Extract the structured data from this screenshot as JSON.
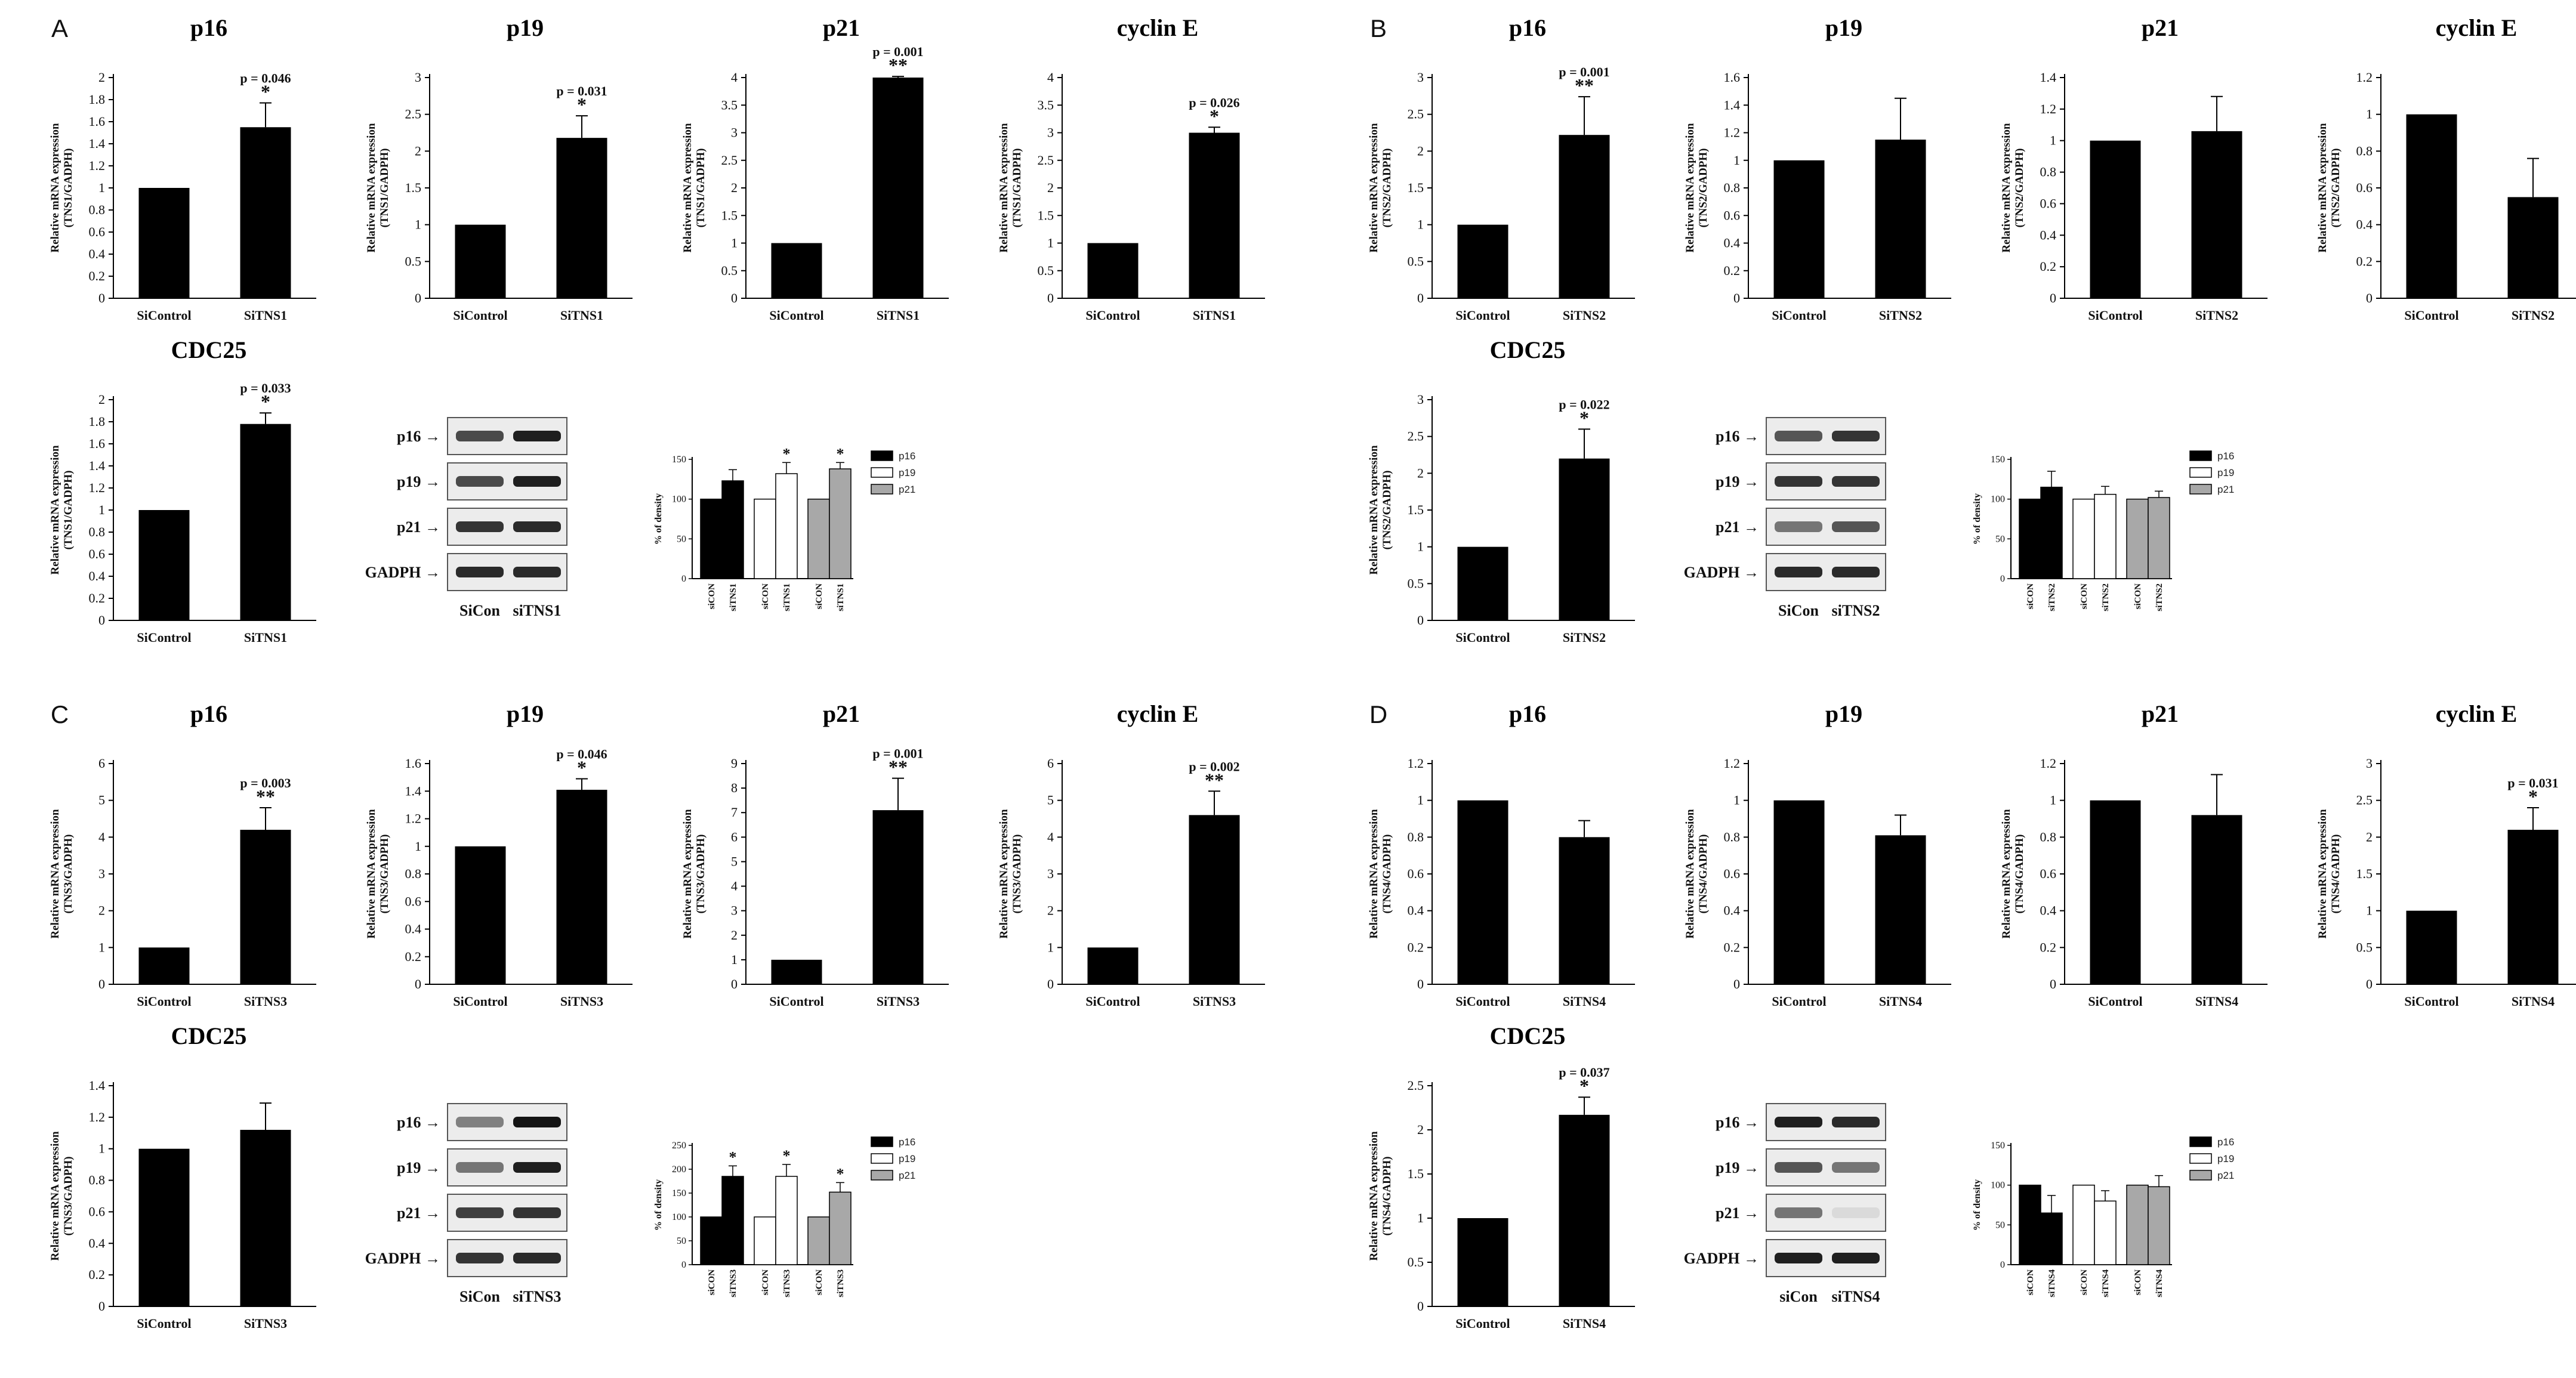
{
  "panels": [
    {
      "letter": "A",
      "row1": [
        {
          "title": "p16",
          "ylabel": [
            "Relative mRNA expression",
            "(TNS1/GADPH)"
          ],
          "ymax": 2,
          "ystep": 0.2,
          "categories": [
            "SiControl",
            "SiTNS1"
          ],
          "values": [
            1.0,
            1.55
          ],
          "errors": [
            0,
            0.22
          ],
          "pvalue": "p = 0.046",
          "sig": "*"
        },
        {
          "title": "p19",
          "ylabel": [
            "Relative mRNA expression",
            "(TNS1/GADPH)"
          ],
          "ymax": 3,
          "ystep": 0.5,
          "categories": [
            "SiControl",
            "SiTNS1"
          ],
          "values": [
            1.0,
            2.18
          ],
          "errors": [
            0,
            0.3
          ],
          "pvalue": "p = 0.031",
          "sig": "*"
        },
        {
          "title": "p21",
          "ylabel": [
            "Relative mRNA expression",
            "(TNS1/GADPH)"
          ],
          "ymax": 4,
          "ystep": 0.5,
          "categories": [
            "SiControl",
            "SiTNS1"
          ],
          "values": [
            1.0,
            4.0
          ],
          "errors": [
            0,
            0.02
          ],
          "pvalue": "p = 0.001",
          "sig": "**"
        },
        {
          "title": "cyclin E",
          "ylabel": [
            "Relative mRNA expression",
            "(TNS1/GADPH)"
          ],
          "ymax": 4,
          "ystep": 0.5,
          "categories": [
            "SiControl",
            "SiTNS1"
          ],
          "values": [
            1.0,
            3.0
          ],
          "errors": [
            0,
            0.1
          ],
          "pvalue": "p = 0.026",
          "sig": "*"
        }
      ],
      "cdc25": {
        "title": "CDC25",
        "ylabel": [
          "Relative mRNA expression",
          "(TNS1/GADPH)"
        ],
        "ymax": 2,
        "ystep": 0.2,
        "categories": [
          "SiControl",
          "SiTNS1"
        ],
        "values": [
          1.0,
          1.78
        ],
        "errors": [
          0,
          0.1
        ],
        "pvalue": "p = 0.033",
        "sig": "*"
      },
      "blot": {
        "rows": [
          "p16 →",
          "p19 →",
          "p21 →",
          "GADPH →"
        ],
        "lanes": [
          "SiCon",
          "siTNS1"
        ],
        "intensity": [
          [
            0.75,
            0.95
          ],
          [
            0.75,
            0.95
          ],
          [
            0.85,
            0.9
          ],
          [
            0.9,
            0.9
          ]
        ]
      },
      "density": {
        "ylabel": "% of density",
        "ymax": 150,
        "ystep": 50,
        "categories": [
          "siCON",
          "siTNS1",
          "siCON",
          "siTNS1",
          "siCON",
          "siTNS1"
        ],
        "values": [
          100,
          123,
          100,
          132,
          100,
          138
        ],
        "errors": [
          0,
          14,
          0,
          14,
          0,
          8
        ],
        "sig": [
          "",
          "",
          "",
          "*",
          "",
          "*"
        ],
        "legend": [
          "p16",
          "p19",
          "p21"
        ]
      }
    },
    {
      "letter": "B",
      "row1": [
        {
          "title": "p16",
          "ylabel": [
            "Relative mRNA expression",
            "(TNS2/GADPH)"
          ],
          "ymax": 3,
          "ystep": 0.5,
          "categories": [
            "SiControl",
            "SiTNS2"
          ],
          "values": [
            1.0,
            2.22
          ],
          "errors": [
            0,
            0.52
          ],
          "pvalue": "p = 0.001",
          "sig": "**"
        },
        {
          "title": "p19",
          "ylabel": [
            "Relative mRNA expression",
            "(TNS2/GADPH)"
          ],
          "ymax": 1.6,
          "ystep": 0.2,
          "categories": [
            "SiControl",
            "SiTNS2"
          ],
          "values": [
            1.0,
            1.15
          ],
          "errors": [
            0,
            0.3
          ],
          "pvalue": "",
          "sig": ""
        },
        {
          "title": "p21",
          "ylabel": [
            "Relative mRNA expression",
            "(TNS2/GADPH)"
          ],
          "ymax": 1.4,
          "ystep": 0.2,
          "categories": [
            "SiControl",
            "SiTNS2"
          ],
          "values": [
            1.0,
            1.06
          ],
          "errors": [
            0,
            0.22
          ],
          "pvalue": "",
          "sig": ""
        },
        {
          "title": "cyclin E",
          "ylabel": [
            "Relative mRNA expression",
            "(TNS2/GADPH)"
          ],
          "ymax": 1.2,
          "ystep": 0.2,
          "categories": [
            "SiControl",
            "SiTNS2"
          ],
          "values": [
            1.0,
            0.55
          ],
          "errors": [
            0,
            0.21
          ],
          "pvalue": "",
          "sig": ""
        }
      ],
      "cdc25": {
        "title": "CDC25",
        "ylabel": [
          "Relative mRNA expression",
          "(TNS2/GADPH)"
        ],
        "ymax": 3,
        "ystep": 0.5,
        "categories": [
          "SiControl",
          "SiTNS2"
        ],
        "values": [
          1.0,
          2.2
        ],
        "errors": [
          0,
          0.4
        ],
        "pvalue": "p = 0.022",
        "sig": "*"
      },
      "blot": {
        "rows": [
          "p16 →",
          "p19 →",
          "p21 →",
          "GADPH →"
        ],
        "lanes": [
          "SiCon",
          "siTNS2"
        ],
        "intensity": [
          [
            0.7,
            0.85
          ],
          [
            0.85,
            0.85
          ],
          [
            0.55,
            0.7
          ],
          [
            0.9,
            0.9
          ]
        ]
      },
      "density": {
        "ylabel": "% of density",
        "ymax": 150,
        "ystep": 50,
        "categories": [
          "siCON",
          "siTNS2",
          "siCON",
          "siTNS2",
          "siCON",
          "siTNS2"
        ],
        "values": [
          100,
          115,
          100,
          106,
          100,
          102
        ],
        "errors": [
          0,
          20,
          0,
          10,
          0,
          8
        ],
        "sig": [
          "",
          "",
          "",
          "",
          "",
          ""
        ],
        "legend": [
          "p16",
          "p19",
          "p21"
        ]
      }
    },
    {
      "letter": "C",
      "row1": [
        {
          "title": "p16",
          "ylabel": [
            "Relative mRNA expression",
            "(TNS3/GADPH)"
          ],
          "ymax": 6,
          "ystep": 1,
          "categories": [
            "SiControl",
            "SiTNS3"
          ],
          "values": [
            1.0,
            4.2
          ],
          "errors": [
            0,
            0.6
          ],
          "pvalue": "p = 0.003",
          "sig": "**"
        },
        {
          "title": "p19",
          "ylabel": [
            "Relative mRNA expression",
            "(TNS3/GADPH)"
          ],
          "ymax": 1.6,
          "ystep": 0.2,
          "categories": [
            "SiControl",
            "SiTNS3"
          ],
          "values": [
            1.0,
            1.41
          ],
          "errors": [
            0,
            0.08
          ],
          "pvalue": "p = 0.046",
          "sig": "*"
        },
        {
          "title": "p21",
          "ylabel": [
            "Relative mRNA expression",
            "(TNS3/GADPH)"
          ],
          "ymax": 9,
          "ystep": 1,
          "categories": [
            "SiControl",
            "SiTNS3"
          ],
          "values": [
            1.0,
            7.1
          ],
          "errors": [
            0,
            1.3
          ],
          "pvalue": "p = 0.001",
          "sig": "**"
        },
        {
          "title": "cyclin E",
          "ylabel": [
            "Relative mRNA expression",
            "(TNS3/GADPH)"
          ],
          "ymax": 6,
          "ystep": 1,
          "categories": [
            "SiControl",
            "SiTNS3"
          ],
          "values": [
            1.0,
            4.6
          ],
          "errors": [
            0,
            0.65
          ],
          "pvalue": "p = 0.002",
          "sig": "**"
        }
      ],
      "cdc25": {
        "title": "CDC25",
        "ylabel": [
          "Relative mRNA expression",
          "(TNS3/GADPH)"
        ],
        "ymax": 1.4,
        "ystep": 0.2,
        "categories": [
          "SiControl",
          "SiTNS3"
        ],
        "values": [
          1.0,
          1.12
        ],
        "errors": [
          0,
          0.17
        ],
        "pvalue": "",
        "sig": ""
      },
      "blot": {
        "rows": [
          "p16 →",
          "p19 →",
          "p21 →",
          "GADPH →"
        ],
        "lanes": [
          "SiCon",
          "siTNS3"
        ],
        "intensity": [
          [
            0.5,
            1.0
          ],
          [
            0.55,
            0.95
          ],
          [
            0.8,
            0.85
          ],
          [
            0.85,
            0.9
          ]
        ]
      },
      "density": {
        "ylabel": "% of density",
        "ymax": 250,
        "ystep": 50,
        "categories": [
          "siCON",
          "siTNS3",
          "siCON",
          "siTNS3",
          "siCON",
          "siTNS3"
        ],
        "values": [
          100,
          185,
          100,
          185,
          100,
          152
        ],
        "errors": [
          0,
          22,
          0,
          25,
          0,
          20
        ],
        "sig": [
          "",
          "*",
          "",
          "*",
          "",
          "*"
        ],
        "legend": [
          "p16",
          "p19",
          "p21"
        ]
      }
    },
    {
      "letter": "D",
      "row1": [
        {
          "title": "p16",
          "ylabel": [
            "Relative mRNA expression",
            "(TNS4/GADPH)"
          ],
          "ymax": 1.2,
          "ystep": 0.2,
          "categories": [
            "SiControl",
            "SiTNS4"
          ],
          "values": [
            1.0,
            0.8
          ],
          "errors": [
            0,
            0.09
          ],
          "pvalue": "",
          "sig": ""
        },
        {
          "title": "p19",
          "ylabel": [
            "Relative mRNA expression",
            "(TNS4/GADPH)"
          ],
          "ymax": 1.2,
          "ystep": 0.2,
          "categories": [
            "SiControl",
            "SiTNS4"
          ],
          "values": [
            1.0,
            0.81
          ],
          "errors": [
            0,
            0.11
          ],
          "pvalue": "",
          "sig": ""
        },
        {
          "title": "p21",
          "ylabel": [
            "Relative mRNA expression",
            "(TNS4/GADPH)"
          ],
          "ymax": 1.2,
          "ystep": 0.2,
          "categories": [
            "SiControl",
            "SiTNS4"
          ],
          "values": [
            1.0,
            0.92
          ],
          "errors": [
            0,
            0.22
          ],
          "pvalue": "",
          "sig": ""
        },
        {
          "title": "cyclin E",
          "ylabel": [
            "Relative mRNA expression",
            "(TNS4/GADPH)"
          ],
          "ymax": 3,
          "ystep": 0.5,
          "categories": [
            "SiControl",
            "SiTNS4"
          ],
          "values": [
            1.0,
            2.1
          ],
          "errors": [
            0,
            0.3
          ],
          "pvalue": "p = 0.031",
          "sig": "*"
        }
      ],
      "cdc25": {
        "title": "CDC25",
        "ylabel": [
          "Relative mRNA expression",
          "(TNS4/GADPH)"
        ],
        "ymax": 2.5,
        "ystep": 0.5,
        "categories": [
          "SiControl",
          "SiTNS4"
        ],
        "values": [
          1.0,
          2.17
        ],
        "errors": [
          0,
          0.2
        ],
        "pvalue": "p = 0.037",
        "sig": "*"
      },
      "blot": {
        "rows": [
          "p16 →",
          "p19 →",
          "p21 →",
          "GADPH →"
        ],
        "lanes": [
          "siCon",
          "siTNS4"
        ],
        "intensity": [
          [
            0.95,
            0.9
          ],
          [
            0.7,
            0.55
          ],
          [
            0.55,
            0.08
          ],
          [
            0.95,
            0.95
          ]
        ]
      },
      "density": {
        "ylabel": "% of density",
        "ymax": 150,
        "ystep": 50,
        "categories": [
          "siCON",
          "siTNS4",
          "siCON",
          "siTNS4",
          "siCON",
          "siTNS4"
        ],
        "values": [
          100,
          65,
          100,
          80,
          100,
          98
        ],
        "errors": [
          0,
          22,
          0,
          13,
          0,
          14
        ],
        "sig": [
          "",
          "",
          "",
          "",
          "",
          ""
        ],
        "legend": [
          "p16",
          "p19",
          "p21"
        ]
      }
    }
  ],
  "chart_data": [
    {
      "type": "bar",
      "panel": "A",
      "categories": [
        "SiControl",
        "SiTNS1"
      ],
      "series": [
        {
          "name": "p16",
          "values": [
            1.0,
            1.55
          ]
        },
        {
          "name": "p19",
          "values": [
            1.0,
            2.18
          ]
        },
        {
          "name": "p21",
          "values": [
            1.0,
            4.0
          ]
        },
        {
          "name": "cyclin E",
          "values": [
            1.0,
            3.0
          ]
        },
        {
          "name": "CDC25",
          "values": [
            1.0,
            1.78
          ]
        }
      ]
    },
    {
      "type": "bar",
      "panel": "B",
      "categories": [
        "SiControl",
        "SiTNS2"
      ],
      "series": [
        {
          "name": "p16",
          "values": [
            1.0,
            2.22
          ]
        },
        {
          "name": "p19",
          "values": [
            1.0,
            1.15
          ]
        },
        {
          "name": "p21",
          "values": [
            1.0,
            1.06
          ]
        },
        {
          "name": "cyclin E",
          "values": [
            1.0,
            0.55
          ]
        },
        {
          "name": "CDC25",
          "values": [
            1.0,
            2.2
          ]
        }
      ]
    },
    {
      "type": "bar",
      "panel": "C",
      "categories": [
        "SiControl",
        "SiTNS3"
      ],
      "series": [
        {
          "name": "p16",
          "values": [
            1.0,
            4.2
          ]
        },
        {
          "name": "p19",
          "values": [
            1.0,
            1.41
          ]
        },
        {
          "name": "p21",
          "values": [
            1.0,
            7.1
          ]
        },
        {
          "name": "cyclin E",
          "values": [
            1.0,
            4.6
          ]
        },
        {
          "name": "CDC25",
          "values": [
            1.0,
            1.12
          ]
        }
      ]
    },
    {
      "type": "bar",
      "panel": "D",
      "categories": [
        "SiControl",
        "SiTNS4"
      ],
      "series": [
        {
          "name": "p16",
          "values": [
            1.0,
            0.8
          ]
        },
        {
          "name": "p19",
          "values": [
            1.0,
            0.81
          ]
        },
        {
          "name": "p21",
          "values": [
            1.0,
            0.92
          ]
        },
        {
          "name": "cyclin E",
          "values": [
            1.0,
            2.1
          ]
        },
        {
          "name": "CDC25",
          "values": [
            1.0,
            2.17
          ]
        }
      ]
    }
  ]
}
